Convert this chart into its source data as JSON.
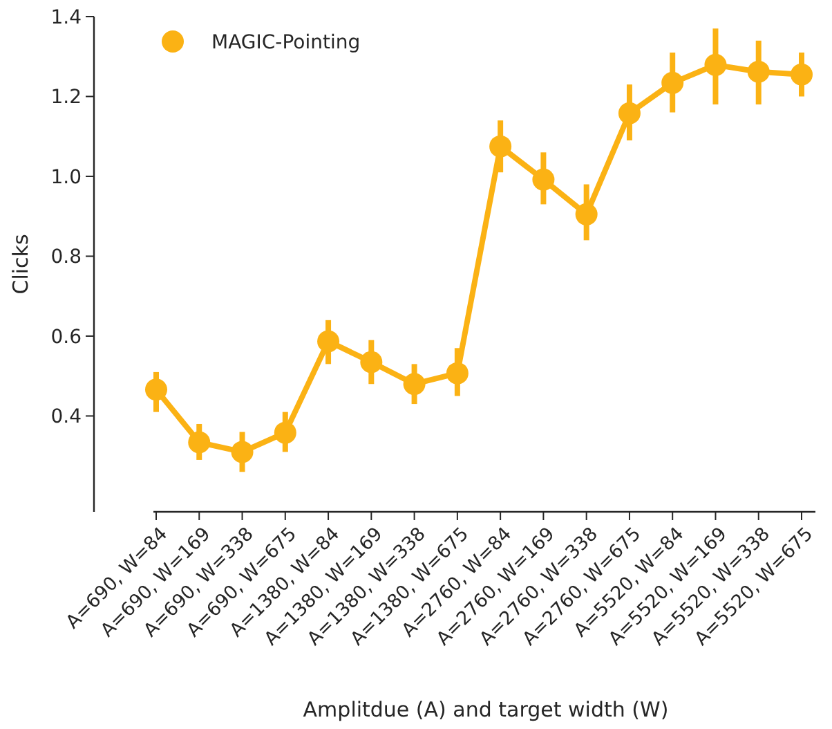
{
  "chart_data": {
    "type": "line",
    "xlabel": "Amplitdue (A) and target width (W)",
    "ylabel": "Clicks",
    "categories": [
      "A=690, W=84",
      "A=690, W=169",
      "A=690, W=338",
      "A=690, W=675",
      "A=1380, W=84",
      "A=1380, W=169",
      "A=1380, W=338",
      "A=1380, W=675",
      "A=2760, W=84",
      "A=2760, W=169",
      "A=2760, W=338",
      "A=2760, W=675",
      "A=5520, W=84",
      "A=5520, W=169",
      "A=5520, W=338",
      "A=5520, W=675"
    ],
    "series": [
      {
        "name": "MAGIC-Pointing",
        "color": "#fbb214",
        "values": [
          0.466,
          0.334,
          0.31,
          0.358,
          0.587,
          0.535,
          0.48,
          0.507,
          1.075,
          0.992,
          0.905,
          1.158,
          1.234,
          1.279,
          1.262,
          1.255
        ],
        "errors": [
          [
            0.41,
            0.51
          ],
          [
            0.29,
            0.38
          ],
          [
            0.26,
            0.36
          ],
          [
            0.31,
            0.41
          ],
          [
            0.53,
            0.64
          ],
          [
            0.48,
            0.59
          ],
          [
            0.43,
            0.53
          ],
          [
            0.45,
            0.57
          ],
          [
            1.01,
            1.14
          ],
          [
            0.93,
            1.06
          ],
          [
            0.84,
            0.98
          ],
          [
            1.09,
            1.23
          ],
          [
            1.16,
            1.31
          ],
          [
            1.18,
            1.37
          ],
          [
            1.18,
            1.34
          ],
          [
            1.2,
            1.31
          ]
        ]
      }
    ],
    "ylim": [
      0.16,
      1.4
    ],
    "yticks": [
      {
        "value": 0.4,
        "label": "0.4"
      },
      {
        "value": 0.6,
        "label": "0.6"
      },
      {
        "value": 0.8,
        "label": "0.8"
      },
      {
        "value": 1.0,
        "label": "1.0"
      },
      {
        "value": 1.2,
        "label": "1.2"
      },
      {
        "value": 1.4,
        "label": "1.4"
      }
    ],
    "legend": "top left",
    "marker": "circle",
    "line_style": "solid",
    "grid": false
  }
}
